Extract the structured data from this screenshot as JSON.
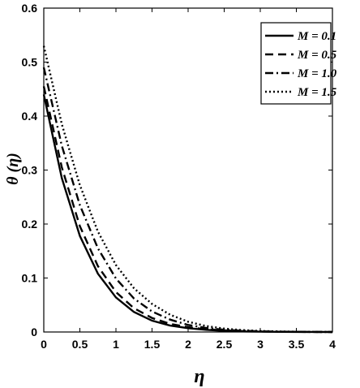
{
  "chart_data": {
    "type": "line",
    "title": "",
    "xlabel": "η",
    "ylabel": "θ (η)",
    "xlim": [
      0,
      4
    ],
    "ylim": [
      0,
      0.6
    ],
    "xticks": [
      "0",
      "0.5",
      "1",
      "1.5",
      "2",
      "2.5",
      "3",
      "3.5",
      "4"
    ],
    "yticks": [
      "0",
      "0.1",
      "0.2",
      "0.3",
      "0.4",
      "0.5",
      "0.6"
    ],
    "grid": false,
    "legend_position": "top-right",
    "x": [
      0,
      0.25,
      0.5,
      0.75,
      1.0,
      1.25,
      1.5,
      1.75,
      2.0,
      2.25,
      2.5,
      2.75,
      3.0,
      3.25,
      3.5,
      3.75,
      4.0
    ],
    "series": [
      {
        "name": "M = 0.1",
        "style": "solid",
        "values": [
          0.44,
          0.285,
          0.178,
          0.108,
          0.064,
          0.037,
          0.021,
          0.012,
          0.007,
          0.004,
          0.002,
          0.001,
          0.0006,
          0.0003,
          0.0002,
          0.0001,
          0.0
        ]
      },
      {
        "name": "M = 0.5",
        "style": "dashed",
        "values": [
          0.455,
          0.305,
          0.196,
          0.122,
          0.074,
          0.044,
          0.026,
          0.015,
          0.009,
          0.005,
          0.003,
          0.0017,
          0.001,
          0.0005,
          0.0003,
          0.0001,
          0.0
        ]
      },
      {
        "name": "M = 1.0",
        "style": "dashdot",
        "values": [
          0.49,
          0.345,
          0.235,
          0.155,
          0.099,
          0.062,
          0.038,
          0.023,
          0.013,
          0.0075,
          0.0042,
          0.0023,
          0.0012,
          0.0006,
          0.0003,
          0.0001,
          0.0
        ]
      },
      {
        "name": "M = 1.5",
        "style": "dotted",
        "values": [
          0.53,
          0.385,
          0.272,
          0.186,
          0.124,
          0.081,
          0.052,
          0.032,
          0.019,
          0.011,
          0.0063,
          0.0035,
          0.0019,
          0.001,
          0.0005,
          0.0002,
          0.0
        ]
      }
    ]
  }
}
